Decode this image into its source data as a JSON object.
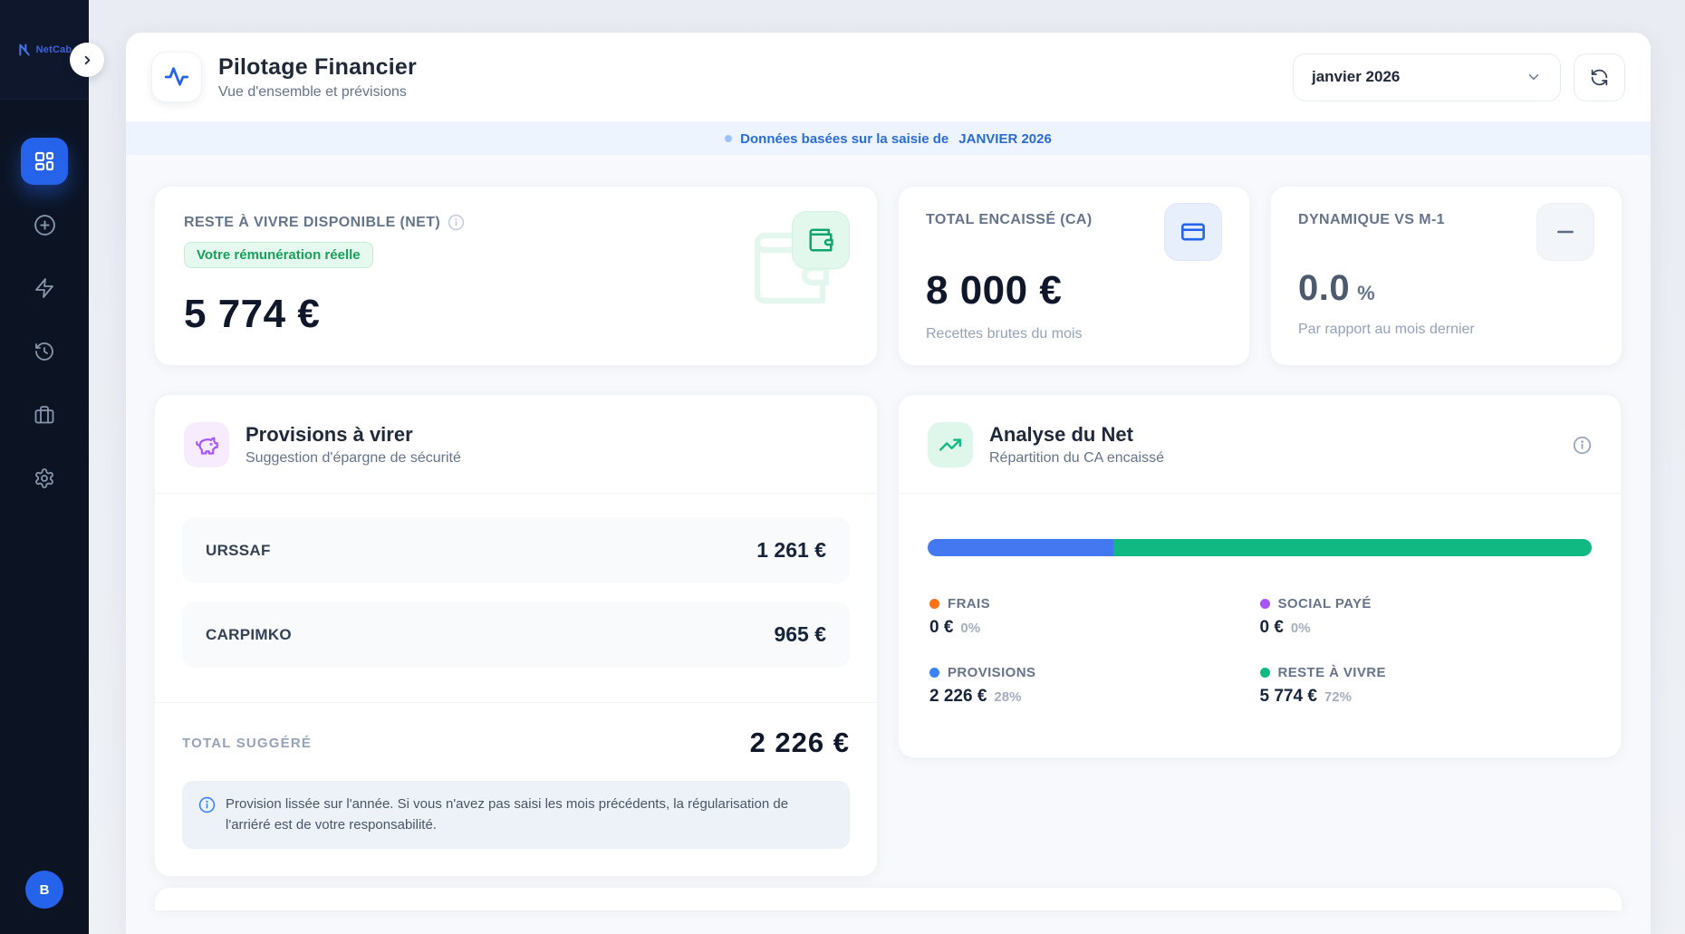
{
  "colors": {
    "accent": "#2563eb",
    "sidebar_bg": "#0c1424",
    "success": "#10b981",
    "banner_text": "#2b6cd4"
  },
  "sidebar": {
    "logo_text": "NetCab",
    "nav": [
      {
        "icon": "dashboard-icon",
        "active": true
      },
      {
        "icon": "plus-circle-icon",
        "active": false
      },
      {
        "icon": "zap-icon",
        "active": false
      },
      {
        "icon": "history-icon",
        "active": false
      },
      {
        "icon": "briefcase-icon",
        "active": false
      },
      {
        "icon": "settings-icon",
        "active": false
      }
    ],
    "avatar_initial": "B"
  },
  "header": {
    "icon": "activity-icon",
    "title": "Pilotage Financier",
    "subtitle": "Vue d'ensemble et prévisions",
    "period_selected": "janvier 2026",
    "refresh_icon": "refresh-icon"
  },
  "banner": {
    "text": "Données basées sur la saisie de",
    "period": "JANVIER 2026"
  },
  "kpis": {
    "reste_a_vivre": {
      "label": "RESTE À VIVRE DISPONIBLE (NET)",
      "badge": "Votre rémunération réelle",
      "value": "5 774 €",
      "icon": "wallet-icon"
    },
    "total_encaisse": {
      "label": "TOTAL ENCAISSÉ (CA)",
      "value": "8 000 €",
      "caption": "Recettes brutes du mois",
      "icon": "credit-card-icon"
    },
    "dynamique": {
      "label": "DYNAMIQUE VS M-1",
      "value": "0.0",
      "unit": "%",
      "caption": "Par rapport au mois dernier",
      "icon": "minus-icon"
    }
  },
  "provisions": {
    "title": "Provisions à virer",
    "subtitle": "Suggestion d'épargne de sécurité",
    "icon": "piggy-bank-icon",
    "rows": [
      {
        "label": "URSSAF",
        "value": "1 261 €"
      },
      {
        "label": "CARPIMKO",
        "value": "965 €"
      }
    ],
    "total_label": "TOTAL SUGGÉRÉ",
    "total_value": "2 226 €",
    "note": "Provision lissée sur l'année. Si vous n'avez pas saisi les mois précédents, la régularisation de l'arriéré est de votre responsabilité."
  },
  "analyse": {
    "title": "Analyse du Net",
    "subtitle": "Répartition du CA encaissé",
    "icon": "trending-up-icon",
    "bar": [
      {
        "name": "PROVISIONS",
        "pct": 28,
        "color": "#3b82f6"
      },
      {
        "name": "RESTE À VIVRE",
        "pct": 72,
        "color": "#10b981"
      }
    ],
    "legend": [
      {
        "label": "FRAIS",
        "value": "0 €",
        "pct": "0%",
        "color": "#f97316"
      },
      {
        "label": "SOCIAL PAYÉ",
        "value": "0 €",
        "pct": "0%",
        "color": "#a855f7"
      },
      {
        "label": "PROVISIONS",
        "value": "2 226 €",
        "pct": "28%",
        "color": "#3b82f6"
      },
      {
        "label": "RESTE À VIVRE",
        "value": "5 774 €",
        "pct": "72%",
        "color": "#10b981"
      }
    ]
  }
}
